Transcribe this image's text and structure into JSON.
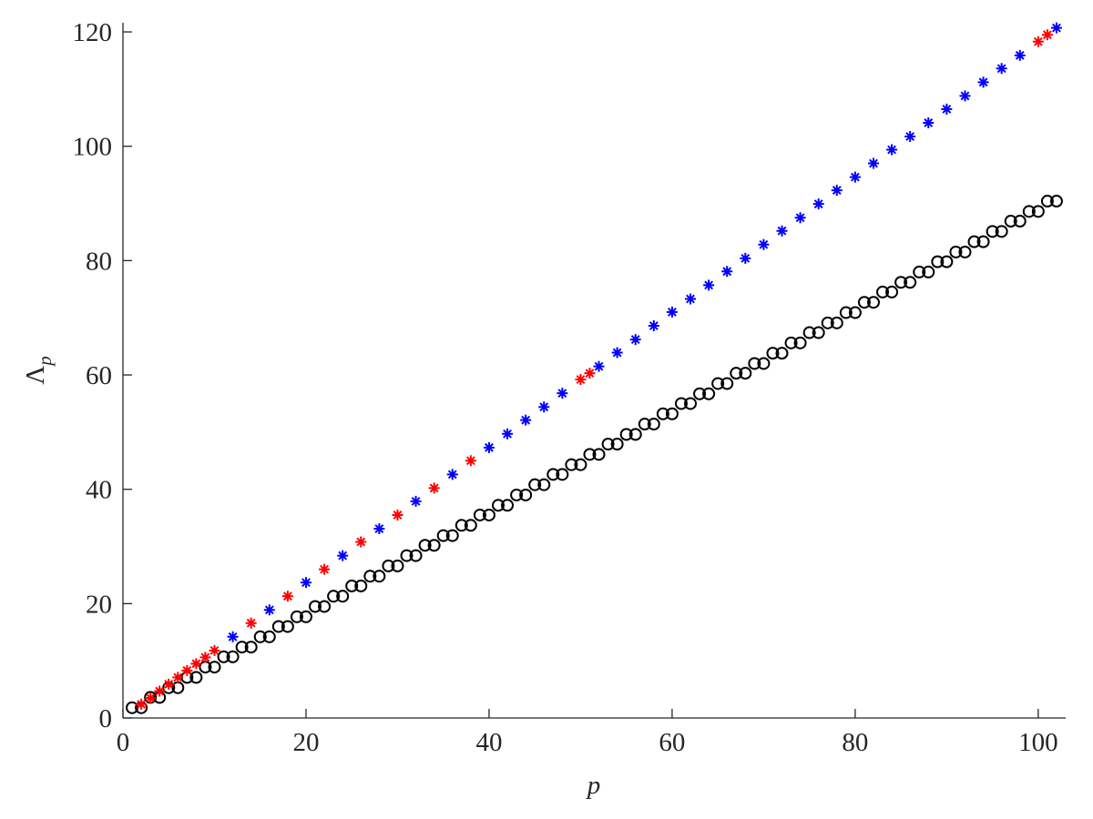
{
  "chart_data": {
    "type": "scatter",
    "xlabel": "p",
    "ylabel": {
      "base": "Λ",
      "sub": "p"
    },
    "xlim": [
      0,
      103
    ],
    "ylim": [
      0,
      121.6
    ],
    "xticks": [
      0,
      20,
      40,
      60,
      80,
      100
    ],
    "yticks": [
      0,
      20,
      40,
      60,
      80,
      100,
      120
    ],
    "series": [
      {
        "color": "#000000",
        "marker": "circle",
        "x": [
          1,
          2,
          3,
          4,
          5,
          6,
          7,
          8,
          9,
          10,
          11,
          12,
          13,
          14,
          15,
          16,
          17,
          18,
          19,
          20,
          21,
          22,
          23,
          24,
          25,
          26,
          27,
          28,
          29,
          30,
          31,
          32,
          33,
          34,
          35,
          36,
          37,
          38,
          39,
          40,
          41,
          42,
          43,
          44,
          45,
          46,
          47,
          48,
          49,
          50,
          51,
          52,
          53,
          54,
          55,
          56,
          57,
          58,
          59,
          60,
          61,
          62,
          63,
          64,
          65,
          66,
          67,
          68,
          69,
          70,
          71,
          72,
          73,
          74,
          75,
          76,
          77,
          78,
          79,
          80,
          81,
          82,
          83,
          84,
          85,
          86,
          87,
          88,
          89,
          90,
          91,
          92,
          93,
          94,
          95,
          96,
          97,
          98,
          99,
          100,
          101,
          102
        ],
        "values": [
          1.8,
          1.8,
          3.6,
          3.6,
          5.3,
          5.3,
          7.1,
          7.1,
          8.9,
          8.9,
          10.7,
          10.7,
          12.4,
          12.4,
          14.2,
          14.2,
          16.0,
          16.0,
          17.7,
          17.7,
          19.5,
          19.5,
          21.3,
          21.3,
          23.1,
          23.1,
          24.8,
          24.8,
          26.6,
          26.6,
          28.4,
          28.4,
          30.2,
          30.2,
          31.9,
          31.9,
          33.7,
          33.7,
          35.5,
          35.5,
          37.2,
          37.2,
          39.0,
          39.0,
          40.8,
          40.8,
          42.6,
          42.6,
          44.3,
          44.3,
          46.1,
          46.1,
          47.9,
          47.9,
          49.6,
          49.6,
          51.4,
          51.4,
          53.2,
          53.2,
          55.0,
          55.0,
          56.7,
          56.7,
          58.5,
          58.5,
          60.3,
          60.3,
          62.0,
          62.0,
          63.8,
          63.8,
          65.6,
          65.6,
          67.4,
          67.4,
          69.1,
          69.1,
          70.9,
          70.9,
          72.7,
          72.7,
          74.5,
          74.5,
          76.2,
          76.2,
          78.0,
          78.0,
          79.8,
          79.8,
          81.5,
          81.5,
          83.3,
          83.3,
          85.1,
          85.1,
          86.9,
          86.9,
          88.6,
          88.6,
          90.4,
          90.4
        ]
      },
      {
        "color": "#ff0000",
        "marker": "star",
        "x": [
          2,
          3,
          4,
          5,
          6,
          7,
          8,
          9,
          10,
          14,
          18,
          22,
          26,
          30,
          34,
          38,
          50,
          51,
          100,
          101
        ],
        "values": [
          2.4,
          3.5,
          4.7,
          5.9,
          7.1,
          8.3,
          9.5,
          10.6,
          11.8,
          16.6,
          21.3,
          26.0,
          30.8,
          35.5,
          40.2,
          45.0,
          59.2,
          60.3,
          118.3,
          119.5
        ]
      },
      {
        "color": "#0000ff",
        "marker": "star",
        "x": [
          12,
          16,
          20,
          24,
          28,
          32,
          36,
          40,
          42,
          44,
          46,
          48,
          52,
          54,
          56,
          58,
          60,
          62,
          64,
          66,
          68,
          70,
          72,
          74,
          76,
          78,
          80,
          82,
          84,
          86,
          88,
          90,
          92,
          94,
          96,
          98,
          102
        ],
        "values": [
          14.2,
          18.9,
          23.7,
          28.4,
          33.1,
          37.9,
          42.6,
          47.3,
          49.7,
          52.1,
          54.4,
          56.8,
          61.5,
          63.9,
          66.2,
          68.6,
          71.0,
          73.3,
          75.7,
          78.1,
          80.4,
          82.8,
          85.2,
          87.5,
          89.9,
          92.3,
          94.6,
          97.0,
          99.4,
          101.7,
          104.1,
          106.5,
          108.8,
          111.2,
          113.6,
          115.9,
          120.7
        ]
      }
    ]
  }
}
